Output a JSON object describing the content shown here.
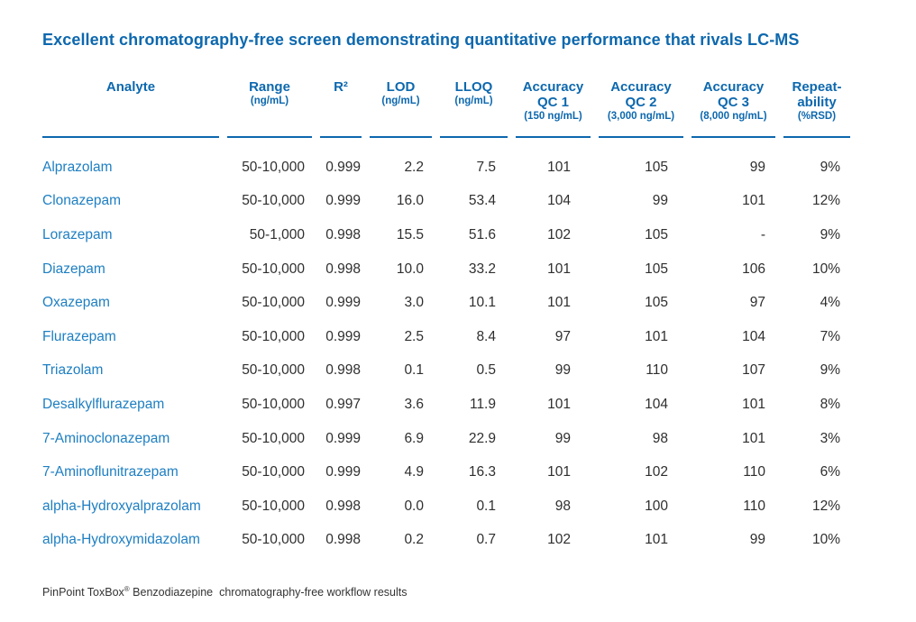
{
  "page": {
    "title": "Excellent chromatography-free screen demonstrating quantitative performance that rivals LC-MS",
    "footnote": {
      "product": "PinPoint ToxBox",
      "registered_mark": "®",
      "rest": " Benzodiazepine  chromatography-free workflow results"
    }
  },
  "colors": {
    "header_blue": "#0d68ae",
    "analyte_blue": "#1e7fc2",
    "body_text": "#2f2f2f"
  },
  "table": {
    "columns": [
      {
        "id": "analyte",
        "line1": "Analyte",
        "line2": "",
        "sub": ""
      },
      {
        "id": "range",
        "line1": "Range",
        "line2": "",
        "sub": "(ng/mL)"
      },
      {
        "id": "r2",
        "line1": "R²",
        "line2": "",
        "sub": ""
      },
      {
        "id": "lod",
        "line1": "LOD",
        "line2": "",
        "sub": "(ng/mL)"
      },
      {
        "id": "lloq",
        "line1": "LLOQ",
        "line2": "",
        "sub": "(ng/mL)"
      },
      {
        "id": "accuracy-qc1",
        "line1": "Accuracy",
        "line2": "QC 1",
        "sub": "(150 ng/mL)"
      },
      {
        "id": "accuracy-qc2",
        "line1": "Accuracy",
        "line2": "QC 2",
        "sub": "(3,000 ng/mL)"
      },
      {
        "id": "accuracy-qc3",
        "line1": "Accuracy",
        "line2": "QC 3",
        "sub": "(8,000 ng/mL)"
      },
      {
        "id": "repeatability",
        "line1": "Repeat-",
        "line2": "ability",
        "sub": "(%RSD)"
      }
    ],
    "rows": [
      [
        "Alprazolam",
        "50-10,000",
        "0.999",
        "2.2",
        "7.5",
        "101",
        "105",
        "99",
        "9%"
      ],
      [
        "Clonazepam",
        "50-10,000",
        "0.999",
        "16.0",
        "53.4",
        "104",
        "99",
        "101",
        "12%"
      ],
      [
        "Lorazepam",
        "50-1,000",
        "0.998",
        "15.5",
        "51.6",
        "102",
        "105",
        "-",
        "9%"
      ],
      [
        "Diazepam",
        "50-10,000",
        "0.998",
        "10.0",
        "33.2",
        "101",
        "105",
        "106",
        "10%"
      ],
      [
        "Oxazepam",
        "50-10,000",
        "0.999",
        "3.0",
        "10.1",
        "101",
        "105",
        "97",
        "4%"
      ],
      [
        "Flurazepam",
        "50-10,000",
        "0.999",
        "2.5",
        "8.4",
        "97",
        "101",
        "104",
        "7%"
      ],
      [
        "Triazolam",
        "50-10,000",
        "0.998",
        "0.1",
        "0.5",
        "99",
        "110",
        "107",
        "9%"
      ],
      [
        "Desalkylflurazepam",
        "50-10,000",
        "0.997",
        "3.6",
        "11.9",
        "101",
        "104",
        "101",
        "8%"
      ],
      [
        "7-Aminoclonazepam",
        "50-10,000",
        "0.999",
        "6.9",
        "22.9",
        "99",
        "98",
        "101",
        "3%"
      ],
      [
        "7-Aminoflunitrazepam",
        "50-10,000",
        "0.999",
        "4.9",
        "16.3",
        "101",
        "102",
        "110",
        "6%"
      ],
      [
        "alpha-Hydroxyalprazolam",
        "50-10,000",
        "0.998",
        "0.0",
        "0.1",
        "98",
        "100",
        "110",
        "12%"
      ],
      [
        "alpha-Hydroxymidazolam",
        "50-10,000",
        "0.998",
        "0.2",
        "0.7",
        "102",
        "101",
        "99",
        "10%"
      ]
    ]
  }
}
